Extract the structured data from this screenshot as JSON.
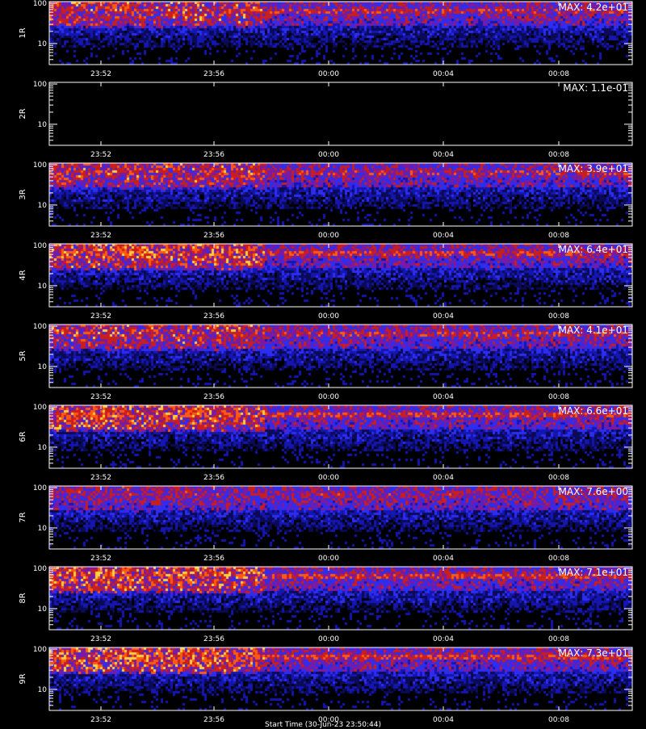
{
  "chart_data": [
    {
      "type": "heatmap",
      "panel_label": "1R",
      "max_text": "MAX: 4.2e+01",
      "max_value": 42,
      "y_ticks": [
        "100",
        "10"
      ],
      "x_ticks": [
        "23:52",
        "23:56",
        "00:00",
        "00:04",
        "00:08"
      ],
      "y_scale": "log",
      "grid": false
    },
    {
      "type": "heatmap",
      "panel_label": "2R",
      "max_text": "MAX: 1.1e-01",
      "max_value": 0.11,
      "y_ticks": [
        "100",
        "10"
      ],
      "x_ticks": [
        "23:52",
        "23:56",
        "00:00",
        "00:04",
        "00:08"
      ],
      "y_scale": "log",
      "grid": false
    },
    {
      "type": "heatmap",
      "panel_label": "3R",
      "max_text": "MAX: 3.9e+01",
      "max_value": 39,
      "y_ticks": [
        "100",
        "10"
      ],
      "x_ticks": [
        "23:52",
        "23:56",
        "00:00",
        "00:04",
        "00:08"
      ],
      "y_scale": "log",
      "grid": false
    },
    {
      "type": "heatmap",
      "panel_label": "4R",
      "max_text": "MAX: 6.4e+01",
      "max_value": 64,
      "y_ticks": [
        "100",
        "10"
      ],
      "x_ticks": [
        "23:52",
        "23:56",
        "00:00",
        "00:04",
        "00:08"
      ],
      "y_scale": "log",
      "grid": false
    },
    {
      "type": "heatmap",
      "panel_label": "5R",
      "max_text": "MAX: 4.1e+01",
      "max_value": 41,
      "y_ticks": [
        "100",
        "10"
      ],
      "x_ticks": [
        "23:52",
        "23:56",
        "00:00",
        "00:04",
        "00:08"
      ],
      "y_scale": "log",
      "grid": false
    },
    {
      "type": "heatmap",
      "panel_label": "6R",
      "max_text": "MAX: 6.6e+01",
      "max_value": 66,
      "y_ticks": [
        "100",
        "10"
      ],
      "x_ticks": [
        "23:52",
        "23:56",
        "00:00",
        "00:04",
        "00:08"
      ],
      "y_scale": "log",
      "grid": false
    },
    {
      "type": "heatmap",
      "panel_label": "7R",
      "max_text": "MAX: 7.6e+00",
      "max_value": 7.6,
      "y_ticks": [
        "100",
        "10"
      ],
      "x_ticks": [
        "23:52",
        "23:56",
        "00:00",
        "00:04",
        "00:08"
      ],
      "y_scale": "log",
      "grid": false
    },
    {
      "type": "heatmap",
      "panel_label": "8R",
      "max_text": "MAX: 7.1e+01",
      "max_value": 71,
      "y_ticks": [
        "100",
        "10"
      ],
      "x_ticks": [
        "23:52",
        "23:56",
        "00:00",
        "00:04",
        "00:08"
      ],
      "y_scale": "log",
      "grid": false
    },
    {
      "type": "heatmap",
      "panel_label": "9R",
      "max_text": "MAX: 7.3e+01",
      "max_value": 73,
      "y_ticks": [
        "100",
        "10"
      ],
      "x_ticks": [
        "23:52",
        "23:56",
        "00:00",
        "00:04",
        "00:08"
      ],
      "y_scale": "log",
      "grid": false
    }
  ],
  "colors": {
    "background": "#000000",
    "axis": "#ffffff",
    "colormap": [
      "#000000",
      "#0a0a55",
      "#1515b0",
      "#2d2df0",
      "#7a1aa0",
      "#c81e1e",
      "#ff5a10",
      "#ffd040"
    ]
  }
}
